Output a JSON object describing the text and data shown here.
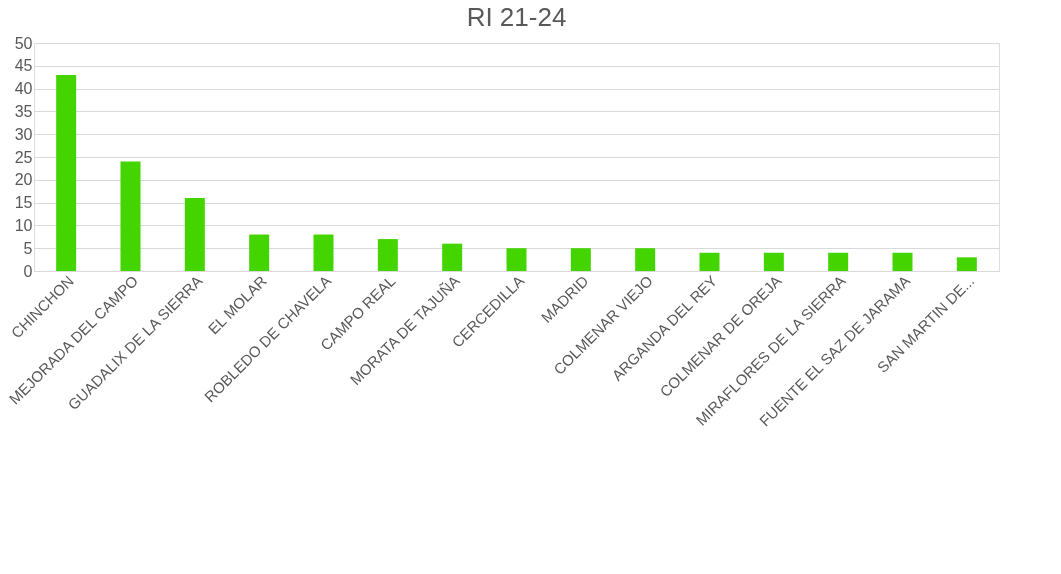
{
  "chart_data": {
    "type": "bar",
    "title": "RI 21-24",
    "categories": [
      "CHINCHON",
      "MEJORADA DEL CAMPO",
      "GUADALIX DE LA SIERRA",
      "EL MOLAR",
      "ROBLEDO DE CHAVELA",
      "CAMPO REAL",
      "MORATA DE TAJUÑA",
      "CERCEDILLA",
      "MADRID",
      "COLMENAR VIEJO",
      "ARGANDA DEL REY",
      "COLMENAR DE OREJA",
      "MIRAFLORES DE LA SIERRA",
      "FUENTE EL SAZ DE JARAMA",
      "SAN MARTIN DE..."
    ],
    "values": [
      43,
      24,
      16,
      8,
      8,
      7,
      6,
      5,
      5,
      5,
      4,
      4,
      4,
      4,
      3
    ],
    "color": "#44d400",
    "ylim": [
      0,
      50
    ],
    "yticks": [
      0,
      5,
      10,
      15,
      20,
      25,
      30,
      35,
      40,
      45,
      50
    ],
    "grid": "y"
  }
}
